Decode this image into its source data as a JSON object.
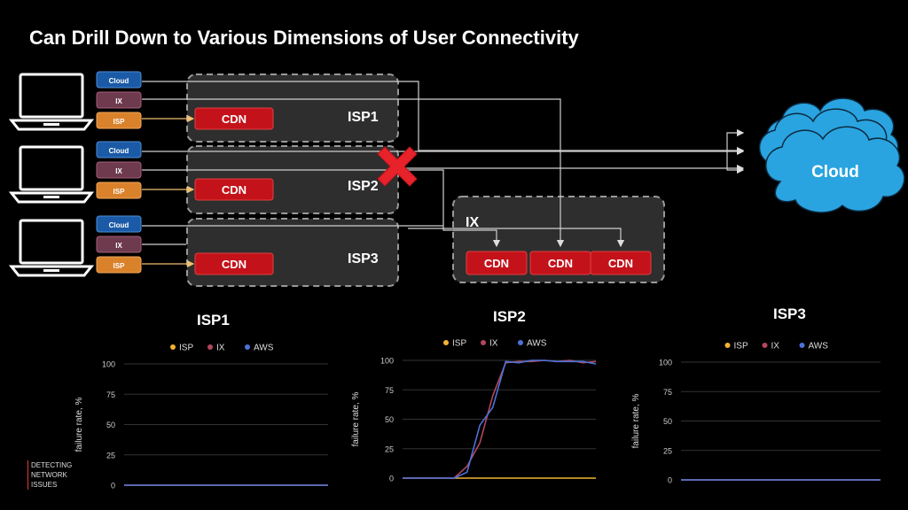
{
  "header": {
    "title": "Can Drill Down to Various Dimensions of User Connectivity"
  },
  "diagram": {
    "client_labels": [
      "Cloud",
      "IX",
      "ISP"
    ],
    "isp_boxes": [
      {
        "label": "ISP1",
        "cdn": "CDN"
      },
      {
        "label": "ISP2",
        "cdn": "CDN"
      },
      {
        "label": "ISP3",
        "cdn": "CDN"
      }
    ],
    "ix_box": {
      "label": "IX",
      "cdns": [
        "CDN",
        "CDN",
        "CDN"
      ]
    },
    "cloud_label": "Cloud",
    "colors": {
      "cloud_tag": "#1a5aa6",
      "ix_tag": "#6d3a4e",
      "isp_tag": "#d9822b",
      "cdn": "#c4121a",
      "cloud": "#29a3df",
      "fail": "#e8222a"
    }
  },
  "footer": {
    "lines": [
      "DETECTING",
      "NETWORK",
      "ISSUES"
    ]
  },
  "chart_data": [
    {
      "type": "line",
      "title": "ISP1",
      "ylabel": "failure rate, %",
      "yticks": [
        0,
        25,
        50,
        75,
        100
      ],
      "ylim": [
        0,
        100
      ],
      "legend": [
        "ISP",
        "IX",
        "AWS"
      ],
      "legend_position": "top",
      "x": [
        1,
        2,
        3,
        4,
        5,
        6,
        7,
        8,
        9,
        10,
        11,
        12,
        13,
        14,
        15,
        16
      ],
      "series": [
        {
          "name": "ISP",
          "color": "#f2b233",
          "values": [
            0,
            0,
            0,
            0,
            0,
            0,
            0,
            0,
            0,
            0,
            0,
            0,
            0,
            0,
            0,
            0
          ]
        },
        {
          "name": "IX",
          "color": "#b2475d",
          "values": [
            0,
            0,
            0,
            0,
            0,
            0,
            0,
            0,
            0,
            0,
            0,
            0,
            0,
            0,
            0,
            0
          ]
        },
        {
          "name": "AWS",
          "color": "#4b72d9",
          "values": [
            0,
            0,
            0,
            0,
            0,
            0,
            0,
            0,
            0,
            0,
            0,
            0,
            0,
            0,
            0,
            0
          ]
        }
      ]
    },
    {
      "type": "line",
      "title": "ISP2",
      "ylabel": "failure rate, %",
      "yticks": [
        0,
        25,
        50,
        75,
        100
      ],
      "ylim": [
        0,
        100
      ],
      "legend": [
        "ISP",
        "IX",
        "AWS"
      ],
      "legend_position": "top",
      "x": [
        1,
        2,
        3,
        4,
        5,
        6,
        7,
        8,
        9,
        10,
        11,
        12,
        13,
        14,
        15,
        16
      ],
      "series": [
        {
          "name": "ISP",
          "color": "#f2b233",
          "values": [
            0,
            0,
            0,
            0,
            0,
            0,
            0,
            0,
            0,
            0,
            0,
            0,
            0,
            0,
            0,
            0
          ]
        },
        {
          "name": "IX",
          "color": "#b2475d",
          "values": [
            0,
            0,
            0,
            0,
            0,
            10,
            30,
            70,
            98,
            99,
            99,
            100,
            99,
            100,
            98,
            99
          ]
        },
        {
          "name": "AWS",
          "color": "#4b72d9",
          "values": [
            0,
            0,
            0,
            0,
            0,
            5,
            45,
            60,
            99,
            98,
            100,
            100,
            99,
            99,
            99,
            97
          ]
        }
      ]
    },
    {
      "type": "line",
      "title": "ISP3",
      "ylabel": "failure rate, %",
      "yticks": [
        0,
        25,
        50,
        75,
        100
      ],
      "ylim": [
        0,
        100
      ],
      "legend": [
        "ISP",
        "IX",
        "AWS"
      ],
      "legend_position": "top",
      "x": [
        1,
        2,
        3,
        4,
        5,
        6,
        7,
        8,
        9,
        10,
        11,
        12,
        13,
        14,
        15,
        16
      ],
      "series": [
        {
          "name": "ISP",
          "color": "#f2b233",
          "values": [
            0,
            0,
            0,
            0,
            0,
            0,
            0,
            0,
            0,
            0,
            0,
            0,
            0,
            0,
            0,
            0
          ]
        },
        {
          "name": "IX",
          "color": "#b2475d",
          "values": [
            0,
            0,
            0,
            0,
            0,
            0,
            0,
            0,
            0,
            0,
            0,
            0,
            0,
            0,
            0,
            0
          ]
        },
        {
          "name": "AWS",
          "color": "#4b72d9",
          "values": [
            0,
            0,
            0,
            0,
            0,
            0,
            0,
            0,
            0,
            0,
            0,
            0,
            0,
            0,
            0,
            0
          ]
        }
      ]
    }
  ]
}
